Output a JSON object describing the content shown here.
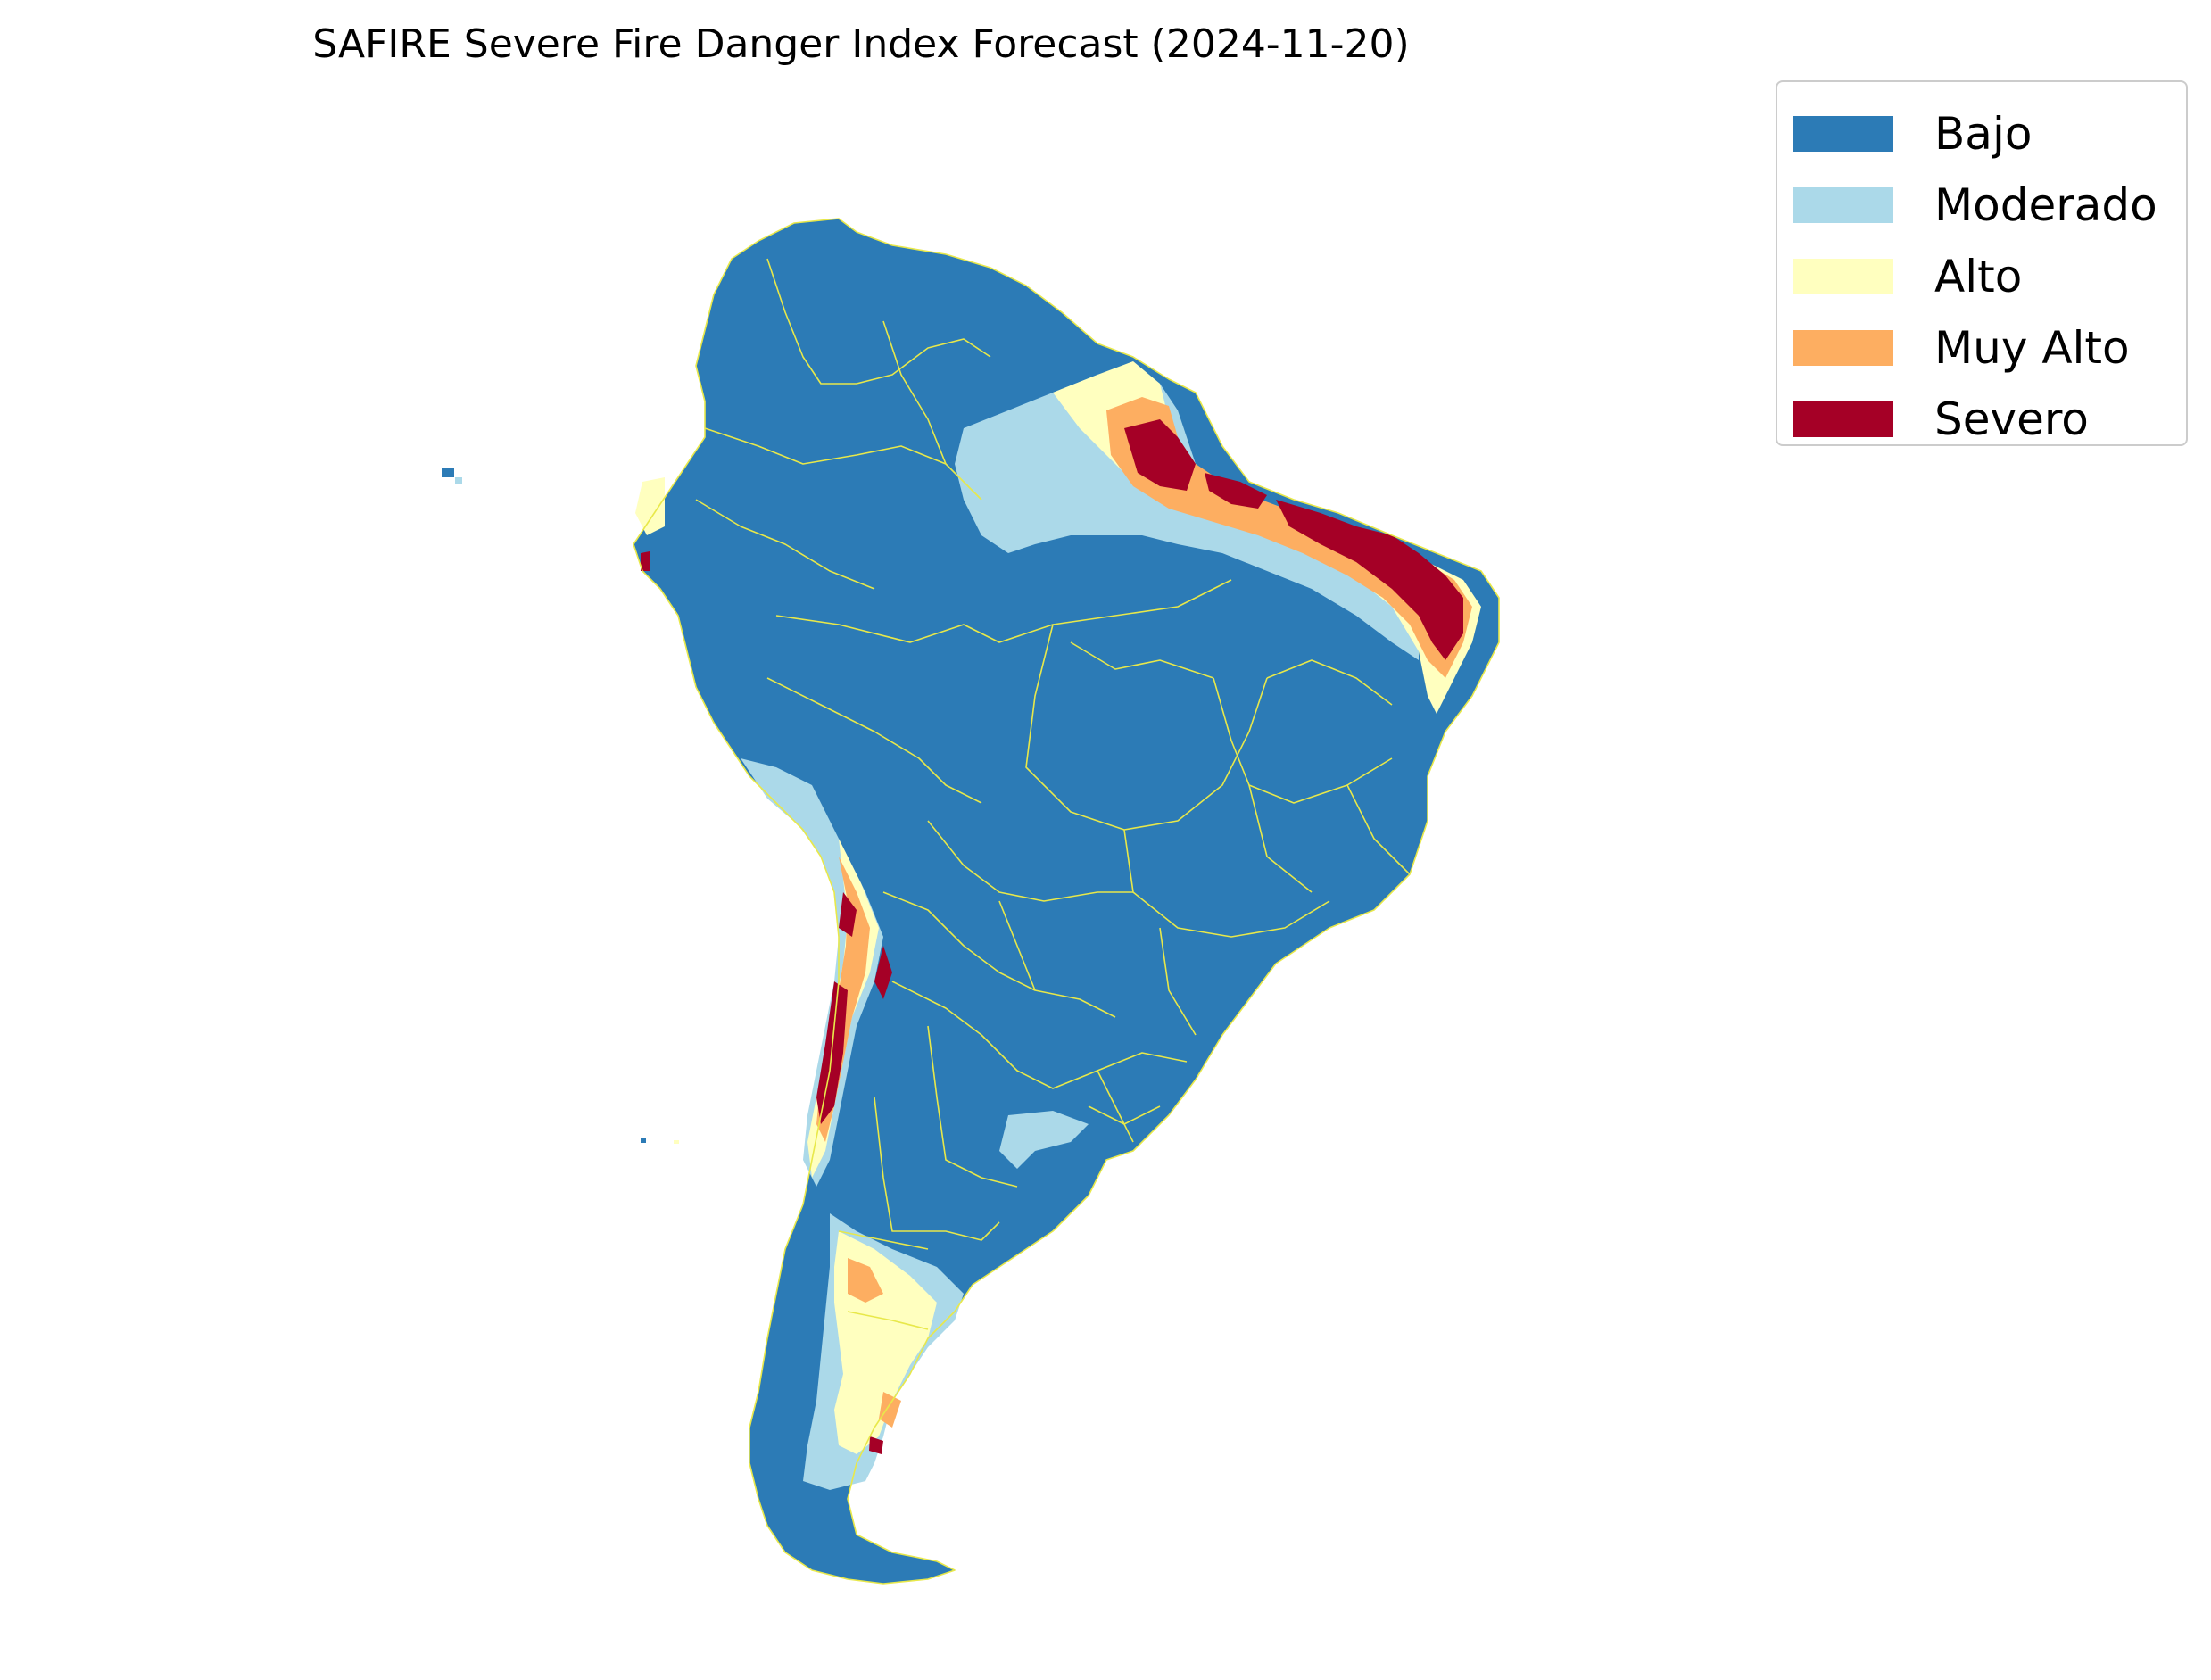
{
  "title": "SAFIRE Severe Fire Danger Index Forecast (2024-11-20)",
  "legend": {
    "placement": "upper-right",
    "items": [
      {
        "label": "Bajo",
        "color": "#2c7bb6"
      },
      {
        "label": "Moderado",
        "color": "#abd9e9"
      },
      {
        "label": "Alto",
        "color": "#ffffbf"
      },
      {
        "label": "Muy Alto",
        "color": "#fdae61"
      },
      {
        "label": "Severo",
        "color": "#a50026"
      }
    ]
  },
  "map": {
    "region": "South America",
    "boundary_color": "#e8e84a",
    "background": "#ffffff"
  }
}
